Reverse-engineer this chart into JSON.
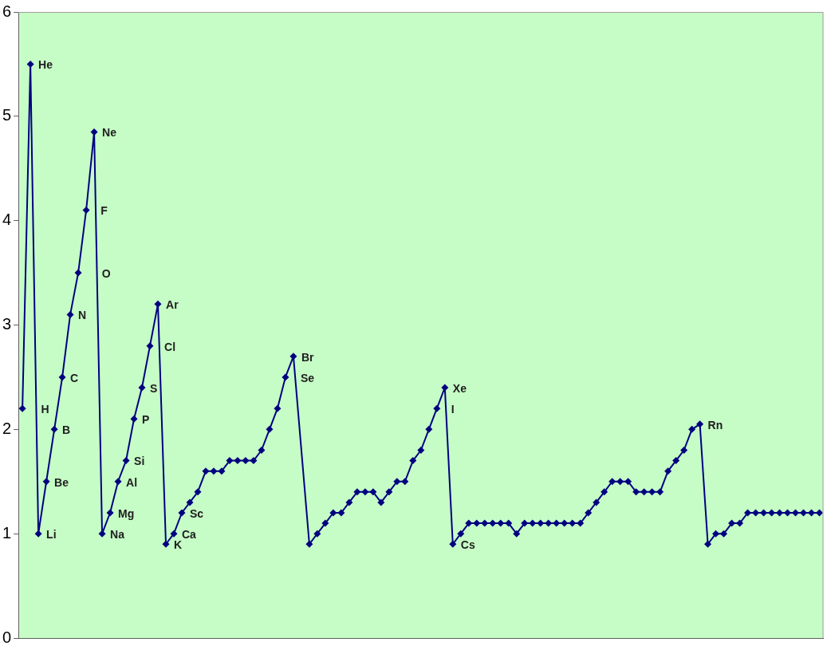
{
  "chart_data": {
    "type": "line",
    "categories": [
      null,
      null,
      null,
      null,
      null,
      null,
      null,
      null,
      null,
      null,
      null,
      null,
      null,
      null,
      null,
      null,
      null,
      null,
      null,
      null,
      null,
      null,
      null,
      null,
      null,
      null,
      null,
      null,
      null,
      null,
      null,
      null,
      null,
      null,
      null,
      null,
      null,
      null,
      null,
      null,
      null,
      null,
      null,
      null,
      null,
      null,
      null,
      null,
      null,
      null,
      null,
      null,
      null,
      null,
      null,
      null,
      null,
      null,
      null,
      null,
      null,
      null,
      null,
      null,
      null,
      null,
      null,
      null,
      null,
      null,
      null,
      null,
      null,
      null,
      null,
      null,
      null,
      null,
      null,
      null,
      null,
      null,
      null,
      null,
      null,
      null,
      null,
      null,
      null,
      null,
      null,
      null,
      null,
      null,
      null,
      null,
      null,
      null,
      null,
      null,
      null
    ],
    "values": [
      2.2,
      5.5,
      1.0,
      1.5,
      2.0,
      2.5,
      3.1,
      3.5,
      4.1,
      4.85,
      1.0,
      1.2,
      1.5,
      1.7,
      2.1,
      2.4,
      2.8,
      3.2,
      0.9,
      1.0,
      1.2,
      1.3,
      1.4,
      1.6,
      1.6,
      1.6,
      1.7,
      1.7,
      1.7,
      1.7,
      1.8,
      2.0,
      2.2,
      2.5,
      2.7,
      null,
      0.9,
      1.0,
      1.1,
      1.2,
      1.2,
      1.3,
      1.4,
      1.4,
      1.4,
      1.3,
      1.4,
      1.5,
      1.5,
      1.7,
      1.8,
      2.0,
      2.2,
      2.4,
      0.9,
      1.0,
      1.1,
      1.1,
      1.1,
      1.1,
      1.1,
      1.1,
      1.0,
      1.1,
      1.1,
      1.1,
      1.1,
      1.1,
      1.1,
      1.1,
      1.1,
      1.2,
      1.3,
      1.4,
      1.5,
      1.5,
      1.5,
      1.4,
      1.4,
      1.4,
      1.4,
      1.6,
      1.7,
      1.8,
      2.0,
      2.05,
      0.9,
      1.0,
      1.0,
      1.1,
      1.1,
      1.2,
      1.2,
      1.2,
      1.2,
      1.2,
      1.2,
      1.2,
      1.2,
      1.2,
      1.2
    ],
    "value_labels": [
      "H",
      "He",
      "Li",
      "Be",
      "B",
      "C",
      "N",
      "O",
      "F",
      "Ne",
      "Na",
      "Mg",
      "Al",
      "Si",
      "P",
      "S",
      "Cl",
      "Ar",
      "K",
      "Ca",
      "Sc",
      null,
      null,
      null,
      null,
      null,
      null,
      null,
      null,
      null,
      null,
      null,
      null,
      "Se",
      "Br",
      null,
      null,
      null,
      null,
      null,
      null,
      null,
      null,
      null,
      null,
      null,
      null,
      null,
      null,
      null,
      null,
      null,
      "I",
      "Xe",
      "Cs",
      null,
      null,
      null,
      null,
      null,
      null,
      null,
      null,
      null,
      null,
      null,
      null,
      null,
      null,
      null,
      null,
      null,
      null,
      null,
      null,
      null,
      null,
      null,
      null,
      null,
      null,
      null,
      null,
      null,
      null,
      "Rn",
      null,
      null,
      null,
      null,
      null,
      null,
      null,
      null,
      null,
      null,
      null,
      null,
      null,
      null,
      null
    ],
    "color": "#000080",
    "ylim": [
      0,
      6
    ],
    "yticks": [
      0,
      1,
      2,
      3,
      4,
      5,
      6
    ],
    "marker": "diamond",
    "line_style": "solid",
    "tick_labels": "y"
  }
}
